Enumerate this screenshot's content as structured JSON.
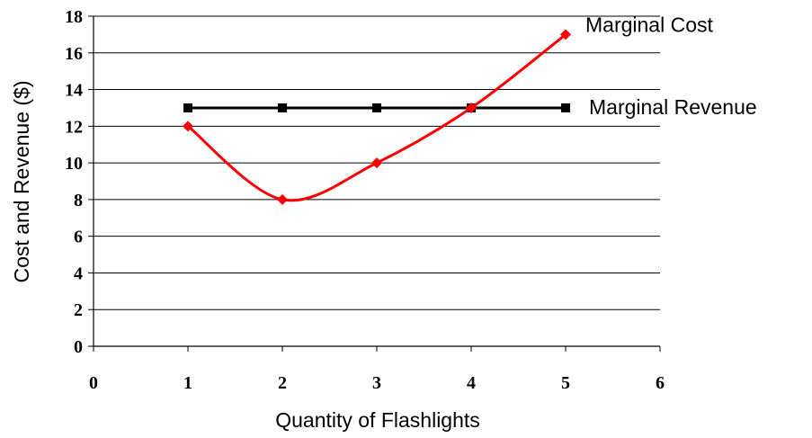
{
  "chart_data": {
    "type": "line",
    "xlabel": "Quantity of Flashlights",
    "ylabel": "Cost and Revenue ($)",
    "xlim": [
      0,
      6
    ],
    "ylim": [
      0,
      18
    ],
    "x_ticks": [
      "0",
      "1",
      "2",
      "3",
      "4",
      "5",
      "6"
    ],
    "y_ticks": [
      "0",
      "2",
      "4",
      "6",
      "8",
      "10",
      "12",
      "14",
      "16",
      "18"
    ],
    "grid": "horizontal",
    "legend": "labels at line ends (right)",
    "series": [
      {
        "name": "Marginal Cost",
        "color": "#ff0000",
        "marker": "diamond",
        "smooth": true,
        "points": [
          [
            1,
            12
          ],
          [
            2,
            8
          ],
          [
            3,
            10
          ],
          [
            4,
            13
          ],
          [
            5,
            17
          ]
        ]
      },
      {
        "name": "Marginal Revenue",
        "color": "#000000",
        "marker": "square",
        "smooth": false,
        "points": [
          [
            1,
            13
          ],
          [
            2,
            13
          ],
          [
            3,
            13
          ],
          [
            4,
            13
          ],
          [
            5,
            13
          ]
        ]
      }
    ]
  }
}
